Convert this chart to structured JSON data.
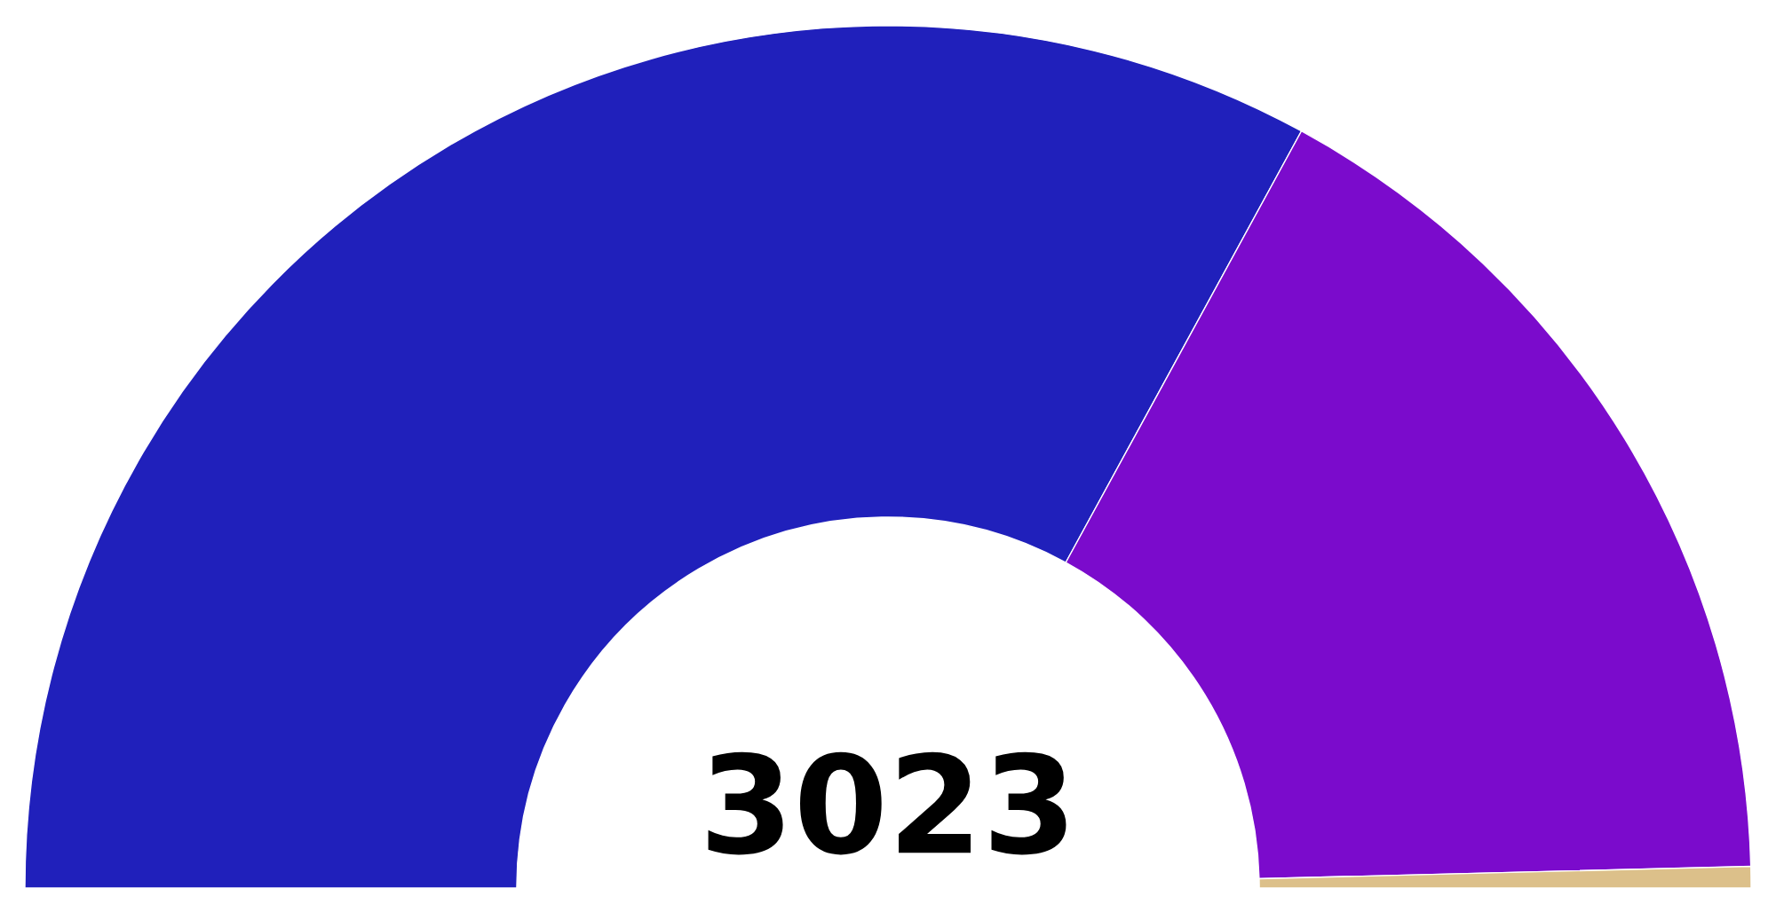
{
  "chart_data": {
    "type": "donut",
    "title": "3023",
    "categories": [
      null,
      null,
      null
    ],
    "values": [
      65.9,
      33.3,
      0.8
    ],
    "colors": [
      "#2020bb",
      "#7b0bcc",
      "#dcc08a"
    ]
  }
}
